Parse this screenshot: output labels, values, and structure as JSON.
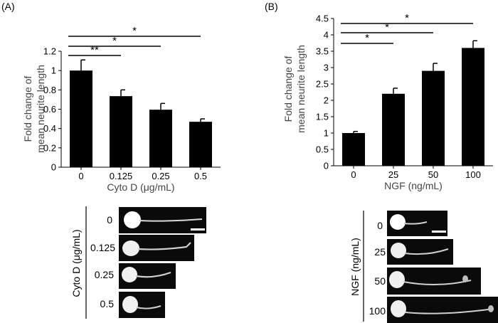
{
  "chart_data": [
    {
      "type": "bar",
      "panel_label": "(A)",
      "categories": [
        "0",
        "0.125",
        "0.25",
        "0.5"
      ],
      "values": [
        1.0,
        0.735,
        0.595,
        0.47
      ],
      "errors": [
        0.11,
        0.065,
        0.065,
        0.03
      ],
      "ylabel_lines": [
        "Fold change of",
        "mean neurite length"
      ],
      "xlabel": "Cyto D (μg/mL)",
      "ylim": [
        0,
        1.2
      ],
      "yticks": [
        "0",
        "0.2",
        "0.4",
        "0.6",
        "0.8",
        "1",
        "1.2"
      ],
      "grid": false,
      "significance": [
        {
          "from": 0,
          "to": 1,
          "label": "**"
        },
        {
          "from": 0,
          "to": 2,
          "label": "*"
        },
        {
          "from": 0,
          "to": 3,
          "label": "*"
        }
      ],
      "image_rows": {
        "label": "Cyto D (μg/mL)",
        "rows": [
          "0",
          "0.125",
          "0.25",
          "0.5"
        ]
      }
    },
    {
      "type": "bar",
      "panel_label": "(B)",
      "categories": [
        "0",
        "25",
        "50",
        "100"
      ],
      "values": [
        1.0,
        2.2,
        2.9,
        3.6
      ],
      "errors": [
        0.05,
        0.17,
        0.23,
        0.22
      ],
      "ylabel_lines": [
        "Fold change of",
        "mean neurite length"
      ],
      "xlabel": "NGF (ng/mL)",
      "ylim": [
        0,
        4.5
      ],
      "yticks": [
        "0",
        "0.5",
        "1",
        "1.5",
        "2",
        "2.5",
        "3",
        "3.5",
        "4",
        "4.5"
      ],
      "grid": false,
      "significance": [
        {
          "from": 0,
          "to": 1,
          "label": "*"
        },
        {
          "from": 0,
          "to": 2,
          "label": "*"
        },
        {
          "from": 0,
          "to": 3,
          "label": "*"
        }
      ],
      "image_rows": {
        "label": "NGF (ng/mL)",
        "rows": [
          "0",
          "25",
          "50",
          "100"
        ]
      }
    }
  ]
}
